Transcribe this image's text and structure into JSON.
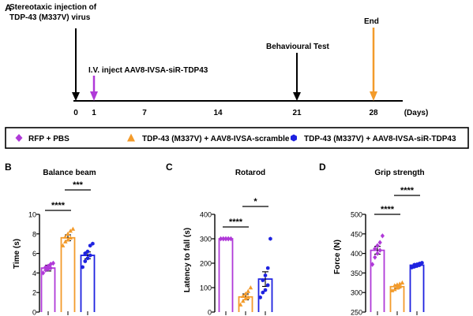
{
  "panels": {
    "a_letter": "A",
    "b_letter": "B",
    "c_letter": "C",
    "d_letter": "D"
  },
  "timeline": {
    "ticks": [
      "0",
      "1",
      "7",
      "14",
      "21",
      "28"
    ],
    "units": "(Days)",
    "annotations": {
      "injection_line1": "Stereotaxic injection of",
      "injection_line2": "TDP-43 (M337V) virus",
      "iv_inject": "I.V. inject AAV8-IVSA-siR-TDP43",
      "behaviour": "Behavioural Test",
      "end": "End"
    },
    "colors": {
      "iv": "#b03ad8",
      "end": "#f39b2b",
      "arrow": "#000000"
    }
  },
  "legend": {
    "items": [
      {
        "label": "RFP + PBS",
        "marker": "diamond",
        "color": "#b03ad8"
      },
      {
        "label": "TDP-43 (M337V) + AAV8-IVSA-scramble",
        "marker": "triangle",
        "color": "#f39b2b"
      },
      {
        "label": "TDP-43 (M337V) + AAV8-IVSA-siR-TDP43",
        "marker": "hexagon",
        "color": "#1e22e0"
      }
    ]
  },
  "chart_data": [
    {
      "type": "bar",
      "title": "Balance beam",
      "ylabel": "Time (s)",
      "ylim": [
        0,
        10
      ],
      "yticks": [
        "0",
        "2",
        "4",
        "6",
        "8",
        "10"
      ],
      "categories": [
        "RFP + PBS",
        "TDP-43 (M337V) + AAV8-IVSA-scramble",
        "TDP-43 (M337V) + AAV8-IVSA-siR-TDP43"
      ],
      "values": [
        4.5,
        7.6,
        5.8
      ],
      "errors": [
        0.3,
        0.3,
        0.35
      ],
      "colors": [
        "#b03ad8",
        "#f39b2b",
        "#1e22e0"
      ],
      "markers": [
        "diamond",
        "triangle",
        "hexagon"
      ],
      "points": [
        [
          4.0,
          4.3,
          4.4,
          4.5,
          4.6,
          4.7,
          4.9,
          5.0
        ],
        [
          6.8,
          7.2,
          7.4,
          7.6,
          7.7,
          8.0,
          8.3,
          8.5
        ],
        [
          4.6,
          5.2,
          5.5,
          5.8,
          6.0,
          6.2,
          6.8,
          7.0
        ]
      ],
      "significance": [
        {
          "from": 0,
          "to": 1,
          "label": "****"
        },
        {
          "from": 1,
          "to": 2,
          "label": "***"
        }
      ]
    },
    {
      "type": "bar",
      "title": "Rotarod",
      "ylabel": "Latency to fall (s)",
      "ylim": [
        0,
        400
      ],
      "yticks": [
        "0",
        "100",
        "200",
        "300",
        "400"
      ],
      "categories": [
        "RFP + PBS",
        "TDP-43 (M337V) + AAV8-IVSA-scramble",
        "TDP-43 (M337V) + AAV8-IVSA-siR-TDP43"
      ],
      "values": [
        300,
        62,
        135
      ],
      "errors": [
        0,
        12,
        30
      ],
      "colors": [
        "#b03ad8",
        "#f39b2b",
        "#1e22e0"
      ],
      "markers": [
        "diamond",
        "triangle",
        "hexagon"
      ],
      "points": [
        [
          300,
          300,
          300,
          300,
          300,
          300,
          300,
          300
        ],
        [
          30,
          45,
          55,
          60,
          65,
          75,
          85,
          100
        ],
        [
          60,
          80,
          90,
          110,
          130,
          150,
          180,
          300
        ]
      ],
      "significance": [
        {
          "from": 0,
          "to": 1,
          "label": "****"
        },
        {
          "from": 1,
          "to": 2,
          "label": "*"
        }
      ]
    },
    {
      "type": "bar",
      "title": "Grip strength",
      "ylabel": "Force (N)",
      "ylim": [
        250,
        500
      ],
      "yticks": [
        "250",
        "300",
        "350",
        "400",
        "450",
        "500"
      ],
      "categories": [
        "RFP + PBS",
        "TDP-43 (M337V) + AAV8-IVSA-scramble",
        "TDP-43 (M337V) + AAV8-IVSA-siR-TDP43"
      ],
      "values": [
        408,
        315,
        370
      ],
      "errors": [
        10,
        4,
        2
      ],
      "colors": [
        "#b03ad8",
        "#f39b2b",
        "#1e22e0"
      ],
      "markers": [
        "diamond",
        "triangle",
        "hexagon"
      ],
      "points": [
        [
          372,
          390,
          400,
          408,
          412,
          420,
          428,
          445
        ],
        [
          305,
          308,
          312,
          315,
          318,
          320,
          322,
          325
        ],
        [
          364,
          366,
          368,
          370,
          371,
          372,
          374,
          376
        ]
      ],
      "significance": [
        {
          "from": 0,
          "to": 1,
          "label": "****"
        },
        {
          "from": 1,
          "to": 2,
          "label": "****"
        }
      ]
    }
  ]
}
